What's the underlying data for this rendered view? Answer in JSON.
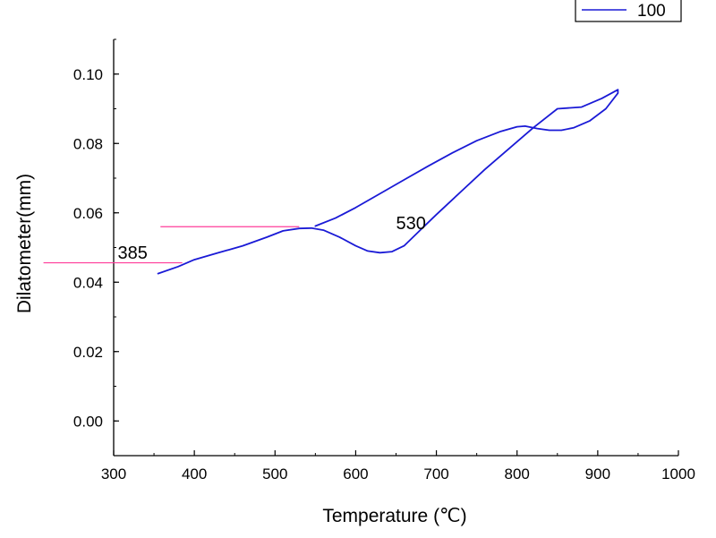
{
  "chart_data": {
    "type": "line",
    "title": "",
    "xlabel": "Temperature (℃)",
    "ylabel": "Dilatometer(mm)",
    "xlim": [
      300,
      1000
    ],
    "ylim": [
      -0.01,
      0.11
    ],
    "xticks": [
      300,
      400,
      500,
      600,
      700,
      800,
      900,
      1000
    ],
    "yticks": [
      0.0,
      0.02,
      0.04,
      0.06,
      0.08,
      0.1
    ],
    "xtick_labels": [
      "300",
      "400",
      "500",
      "600",
      "700",
      "800",
      "900",
      "1000"
    ],
    "ytick_labels": [
      "0.00",
      "0.02",
      "0.04",
      "0.06",
      "0.08",
      "0.10"
    ],
    "grid": false,
    "legend_position": "top-right",
    "series": [
      {
        "name": "100",
        "color": "#1a1ad6",
        "x": [
          355,
          380,
          400,
          430,
          460,
          490,
          510,
          530,
          545,
          560,
          580,
          600,
          615,
          630,
          645,
          660,
          680,
          700,
          730,
          760,
          790,
          820,
          850,
          880,
          905,
          925,
          925,
          910,
          890,
          870,
          855,
          840,
          825,
          810,
          800,
          780,
          750,
          720,
          690,
          660,
          630,
          600,
          575,
          550
        ],
        "y": [
          0.0425,
          0.0445,
          0.0465,
          0.0485,
          0.0505,
          0.053,
          0.0548,
          0.0555,
          0.0556,
          0.055,
          0.053,
          0.0505,
          0.049,
          0.0485,
          0.0488,
          0.0505,
          0.055,
          0.0595,
          0.066,
          0.0725,
          0.0785,
          0.0845,
          0.09,
          0.0905,
          0.093,
          0.0955,
          0.0945,
          0.09,
          0.0865,
          0.0845,
          0.0838,
          0.0838,
          0.0843,
          0.085,
          0.0848,
          0.0835,
          0.0808,
          0.0773,
          0.0735,
          0.0695,
          0.0655,
          0.0615,
          0.0585,
          0.0562
        ]
      }
    ],
    "annotations": [
      {
        "text": "385",
        "x": 305,
        "y": 0.0468,
        "line_y": 0.0456,
        "line_x": [
          213,
          385
        ],
        "color": "#ff3d9a"
      },
      {
        "text": "530",
        "x": 650,
        "y": 0.0553,
        "line_y": 0.056,
        "line_x": [
          358,
          530
        ],
        "color": "#ff3d9a"
      }
    ]
  }
}
